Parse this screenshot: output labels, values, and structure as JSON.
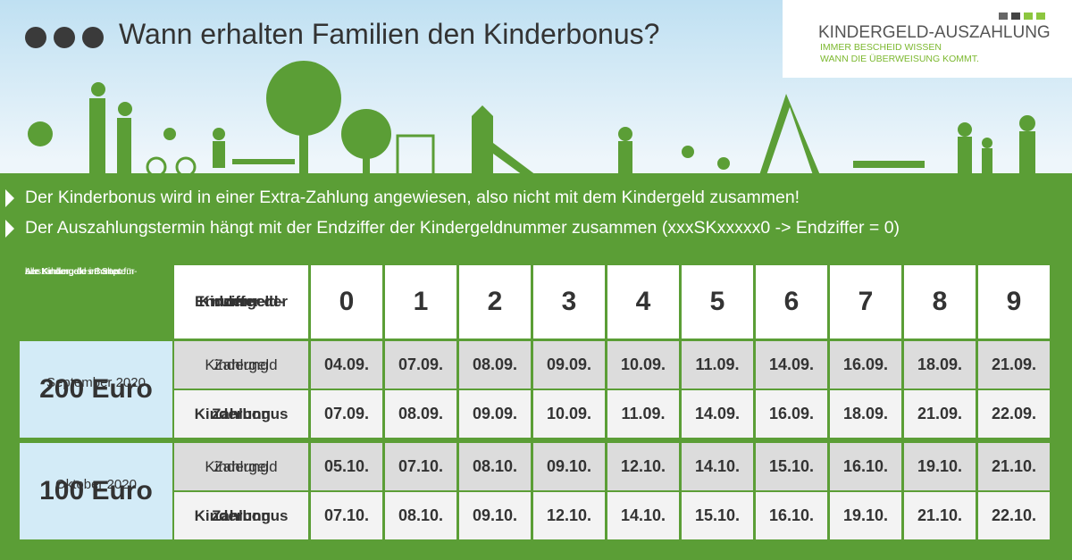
{
  "header": {
    "title": "Wann erhalten Familien den Kinderbonus?"
  },
  "logo": {
    "name": "KINDERGELD-AUSZAHLUNG",
    "tagline": [
      "IMMER BESCHEID WISSEN",
      "WANN DIE ÜBERWEISUNG KOMMT."
    ]
  },
  "bullets": [
    "Der Kinderbonus wird in einer Extra-Zahlung angewiesen, also nicht mit dem Kindergeld zusammen!",
    "Der Auszahlungstermin hängt mit der Endziffer der Kindergeldnummer zusammen (xxxSKxxxxx0 -> Endziffer = 0)"
  ],
  "table": {
    "intro": [
      "Auszahlung des Bonus für",
      "alle Kinder, die im Septem-",
      "ber Kindergeld erhalten:"
    ],
    "digit_header": [
      "Endziffer der",
      "Kindergeld-",
      "nummer"
    ],
    "digits": [
      0,
      1,
      2,
      3,
      4,
      5,
      6,
      7,
      8,
      9
    ],
    "groups": [
      {
        "month": "September 2020",
        "amount": "200 Euro",
        "rows": [
          {
            "label": [
              "Zahlung",
              "Kindergeld"
            ],
            "values": [
              "04.09.",
              "07.09.",
              "08.09.",
              "09.09.",
              "10.09.",
              "11.09.",
              "14.09.",
              "16.09.",
              "18.09.",
              "21.09."
            ]
          },
          {
            "label": [
              "Zahlung",
              "Kinderbonus"
            ],
            "values": [
              "07.09.",
              "08.09.",
              "09.09.",
              "10.09.",
              "11.09.",
              "14.09.",
              "16.09.",
              "18.09.",
              "21.09.",
              "22.09."
            ]
          }
        ]
      },
      {
        "month": "Oktober 2020",
        "amount": "100 Euro",
        "rows": [
          {
            "label": [
              "Zahlung",
              "Kindergeld"
            ],
            "values": [
              "05.10.",
              "07.10.",
              "08.10.",
              "09.10.",
              "12.10.",
              "14.10.",
              "15.10.",
              "16.10.",
              "19.10.",
              "21.10."
            ]
          },
          {
            "label": [
              "Zahlung",
              "Kinderbonus"
            ],
            "values": [
              "07.10.",
              "08.10.",
              "09.10.",
              "12.10.",
              "14.10.",
              "15.10.",
              "16.10.",
              "19.10.",
              "21.10.",
              "22.10."
            ]
          }
        ]
      }
    ]
  }
}
